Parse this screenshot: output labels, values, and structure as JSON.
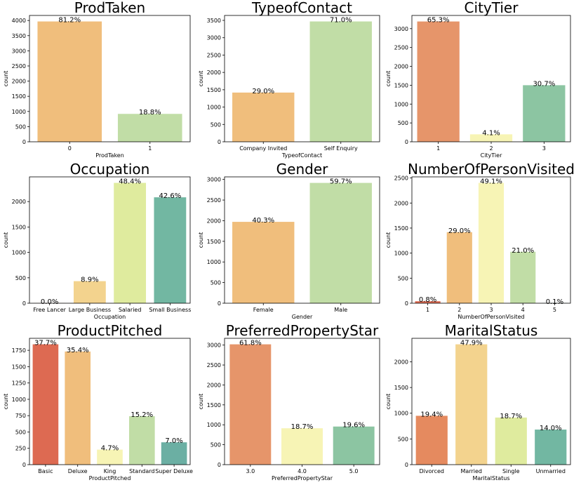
{
  "chart_data": [
    {
      "type": "bar",
      "title": "ProdTaken",
      "xlabel": "ProdTaken",
      "ylabel": "count",
      "categories": [
        "0",
        "1"
      ],
      "values": [
        3968,
        920
      ],
      "data_labels": [
        "81.2%",
        "18.8%"
      ],
      "yticks": [
        0,
        500,
        1000,
        1500,
        2000,
        2500,
        3000,
        3500,
        4000
      ],
      "ylim": [
        0,
        4166
      ],
      "colors": [
        "#F0BE7C",
        "#C1DDA6"
      ]
    },
    {
      "type": "bar",
      "title": "TypeofContact",
      "xlabel": "TypeofContact",
      "ylabel": "count",
      "categories": [
        "Company Invited",
        "Self Enquiry"
      ],
      "values": [
        1419,
        3469
      ],
      "data_labels": [
        "29.0%",
        "71.0%"
      ],
      "yticks": [
        0,
        500,
        1000,
        1500,
        2000,
        2500,
        3000,
        3500
      ],
      "ylim": [
        0,
        3642
      ],
      "colors": [
        "#F0BE7C",
        "#C1DDA6"
      ]
    },
    {
      "type": "bar",
      "title": "CityTier",
      "xlabel": "CityTier",
      "ylabel": "count",
      "categories": [
        "1",
        "2",
        "3"
      ],
      "values": [
        3190,
        198,
        1500
      ],
      "data_labels": [
        "65.3%",
        "4.1%",
        "30.7%"
      ],
      "yticks": [
        0,
        500,
        1000,
        1500,
        2000,
        2500,
        3000
      ],
      "ylim": [
        0,
        3350
      ],
      "colors": [
        "#E6956A",
        "#F7F4B5",
        "#8CC5A2"
      ]
    },
    {
      "type": "bar",
      "title": "Occupation",
      "xlabel": "Occupation",
      "ylabel": "count",
      "categories": [
        "Free Lancer",
        "Large Business",
        "Salaried",
        "Small Business"
      ],
      "values": [
        2,
        434,
        2368,
        2084
      ],
      "data_labels": [
        "0.0%",
        "8.9%",
        "48.4%",
        "42.6%"
      ],
      "yticks": [
        0,
        500,
        1000,
        1500,
        2000
      ],
      "ylim": [
        0,
        2486
      ],
      "colors": [
        "#E58A5F",
        "#F3D38E",
        "#DFEB9E",
        "#72B7A2"
      ]
    },
    {
      "type": "bar",
      "title": "Gender",
      "xlabel": "Gender",
      "ylabel": "count",
      "categories": [
        "Female",
        "Male"
      ],
      "values": [
        1972,
        2916
      ],
      "data_labels": [
        "40.3%",
        "59.7%"
      ],
      "yticks": [
        0,
        500,
        1000,
        1500,
        2000,
        2500,
        3000
      ],
      "ylim": [
        0,
        3062
      ],
      "colors": [
        "#F0BE7C",
        "#C1DDA6"
      ]
    },
    {
      "type": "bar",
      "title": "NumberOfPersonVisited",
      "xlabel": "NumberOfPersonVisited",
      "ylabel": "count",
      "categories": [
        "1",
        "2",
        "3",
        "4",
        "5"
      ],
      "values": [
        39,
        1418,
        2402,
        1026,
        3
      ],
      "data_labels": [
        "0.8%",
        "29.0%",
        "49.1%",
        "21.0%",
        "0.1%"
      ],
      "yticks": [
        0,
        500,
        1000,
        1500,
        2000,
        2500
      ],
      "ylim": [
        0,
        2522
      ],
      "colors": [
        "#DD6A52",
        "#F0BE7C",
        "#F7F4B5",
        "#C1DDA6",
        "#6BAFA3"
      ]
    },
    {
      "type": "bar",
      "title": "ProductPitched",
      "xlabel": "ProductPitched",
      "ylabel": "count",
      "categories": [
        "Basic",
        "Deluxe",
        "King",
        "Standard",
        "Super Deluxe"
      ],
      "values": [
        1842,
        1732,
        230,
        742,
        342
      ],
      "data_labels": [
        "37.7%",
        "35.4%",
        "4.7%",
        "15.2%",
        "7.0%"
      ],
      "yticks": [
        0,
        250,
        500,
        750,
        1000,
        1250,
        1500,
        1750
      ],
      "ylim": [
        0,
        1934
      ],
      "colors": [
        "#DD6A52",
        "#F0BE7C",
        "#F7F4B5",
        "#C1DDA6",
        "#6BAFA3"
      ]
    },
    {
      "type": "bar",
      "title": "PreferredPropertyStar",
      "xlabel": "PreferredPropertyStar",
      "ylabel": "count",
      "categories": [
        "3.0",
        "4.0",
        "5.0"
      ],
      "values": [
        3019,
        913,
        956
      ],
      "data_labels": [
        "61.8%",
        "18.7%",
        "19.6%"
      ],
      "yticks": [
        0,
        500,
        1000,
        1500,
        2000,
        2500,
        3000
      ],
      "ylim": [
        0,
        3170
      ],
      "colors": [
        "#E6956A",
        "#F7F4B5",
        "#8CC5A2"
      ]
    },
    {
      "type": "bar",
      "title": "MaritalStatus",
      "xlabel": "MaritalStatus",
      "ylabel": "count",
      "categories": [
        "Divorced",
        "Married",
        "Single",
        "Unmarried"
      ],
      "values": [
        950,
        2340,
        916,
        682
      ],
      "data_labels": [
        "19.4%",
        "47.9%",
        "18.7%",
        "14.0%"
      ],
      "yticks": [
        0,
        500,
        1000,
        1500,
        2000
      ],
      "ylim": [
        0,
        2457
      ],
      "colors": [
        "#E58A5F",
        "#F3D38E",
        "#DFEB9E",
        "#72B7A2"
      ]
    }
  ]
}
